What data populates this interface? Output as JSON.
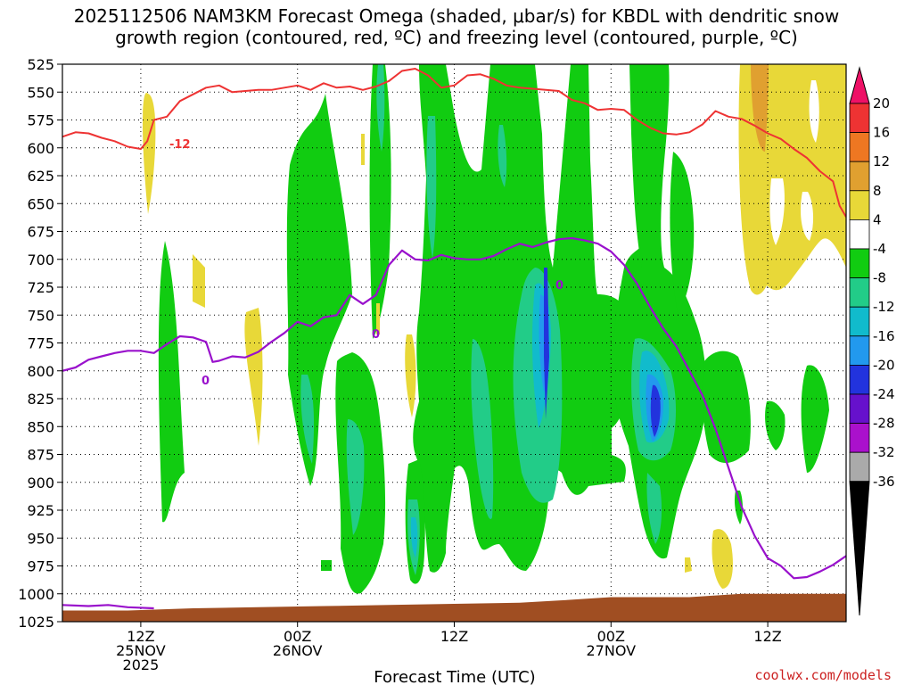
{
  "chart_data": {
    "type": "heatmap",
    "title_line1": "2025112506 NAM3KM Forecast Omega (shaded, μbar/s) for KBDL with dendritic snow",
    "title_line2": "growth region (contoured, red, ºC) and freezing level (contoured, purple, ºC)",
    "xlabel": "Forecast Time (UTC)",
    "credit": "coolwx.com/models",
    "x_range_hours": [
      0,
      60
    ],
    "x_ticks": [
      {
        "hour": 6,
        "lines": [
          "12Z",
          "25NOV",
          "2025"
        ]
      },
      {
        "hour": 18,
        "lines": [
          "00Z",
          "26NOV"
        ]
      },
      {
        "hour": 30,
        "lines": [
          "12Z"
        ]
      },
      {
        "hour": 42,
        "lines": [
          "00Z",
          "27NOV"
        ]
      },
      {
        "hour": 54,
        "lines": [
          "12Z"
        ]
      }
    ],
    "y_range_hpa": [
      1025,
      525
    ],
    "y_ticks": [
      "525",
      "550",
      "575",
      "600",
      "625",
      "650",
      "675",
      "700",
      "725",
      "750",
      "775",
      "800",
      "825",
      "850",
      "875",
      "900",
      "925",
      "950",
      "975",
      "1000",
      "1025"
    ],
    "colorbar": {
      "labels": [
        "20",
        "16",
        "12",
        "8",
        "4",
        "-4",
        "-8",
        "-12",
        "-16",
        "-20",
        "-24",
        "-28",
        "-32",
        "-36"
      ],
      "colors": [
        "#ee1166",
        "#ee3333",
        "#ee7722",
        "#e0a030",
        "#e8d838",
        "#ffffff",
        "#11cc11",
        "#22cc88",
        "#11bbcc",
        "#2299ee",
        "#2233dd",
        "#6611cc",
        "#aa11cc",
        "#aaaaaa",
        "#000000"
      ]
    },
    "series": [
      {
        "name": "omega_shading",
        "colors": {
          "green": "#11cc11",
          "seagreen": "#22cc88",
          "cyan": "#11bbcc",
          "blue": "#2299ee",
          "darkblue": "#2233dd",
          "yellow": "#e8d838",
          "orange": "#e0a030"
        }
      },
      {
        "name": "dgz_-12C",
        "color": "#ee3333",
        "label": "-12",
        "points": [
          [
            0,
            590
          ],
          [
            1,
            586
          ],
          [
            2,
            587
          ],
          [
            3,
            591
          ],
          [
            4,
            594
          ],
          [
            5,
            599
          ],
          [
            6,
            601
          ],
          [
            6.5,
            594
          ],
          [
            7,
            575
          ],
          [
            8,
            572
          ],
          [
            9,
            558
          ],
          [
            10,
            552
          ],
          [
            11,
            546
          ],
          [
            12,
            544
          ],
          [
            13,
            550
          ],
          [
            14,
            549
          ],
          [
            15,
            548
          ],
          [
            16,
            548
          ],
          [
            17,
            546
          ],
          [
            18,
            544
          ],
          [
            19,
            548
          ],
          [
            20,
            542
          ],
          [
            21,
            546
          ],
          [
            22,
            545
          ],
          [
            23,
            548
          ],
          [
            24,
            545
          ],
          [
            25,
            540
          ],
          [
            26,
            531
          ],
          [
            27,
            529
          ],
          [
            28,
            535
          ],
          [
            29,
            546
          ],
          [
            30,
            544
          ],
          [
            31,
            535
          ],
          [
            32,
            534
          ],
          [
            33,
            538
          ],
          [
            34,
            544
          ],
          [
            35,
            546
          ],
          [
            36,
            547
          ],
          [
            37,
            548
          ],
          [
            38,
            549
          ],
          [
            39,
            557
          ],
          [
            40,
            560
          ],
          [
            41,
            566
          ],
          [
            42,
            565
          ],
          [
            43,
            566
          ],
          [
            44,
            575
          ],
          [
            45,
            582
          ],
          [
            46,
            587
          ],
          [
            47,
            588
          ],
          [
            48,
            586
          ],
          [
            49,
            579
          ],
          [
            50,
            567
          ],
          [
            51,
            572
          ],
          [
            52,
            574
          ],
          [
            53,
            580
          ],
          [
            54,
            587
          ],
          [
            55,
            592
          ],
          [
            56,
            601
          ],
          [
            57,
            609
          ],
          [
            58,
            621
          ],
          [
            59,
            630
          ],
          [
            59.5,
            652
          ],
          [
            60,
            662
          ]
        ]
      },
      {
        "name": "freezing_level_0C",
        "color": "#9911cc",
        "label": "0",
        "points": [
          [
            0,
            800
          ],
          [
            1,
            797
          ],
          [
            2,
            790
          ],
          [
            3,
            787
          ],
          [
            4,
            784
          ],
          [
            5,
            782
          ],
          [
            6,
            782
          ],
          [
            7,
            784
          ],
          [
            8,
            776
          ],
          [
            9,
            769
          ],
          [
            10,
            770
          ],
          [
            11,
            774
          ],
          [
            11.5,
            792
          ],
          [
            12,
            791
          ],
          [
            13,
            787
          ],
          [
            14,
            788
          ],
          [
            15,
            783
          ],
          [
            16,
            774
          ],
          [
            17,
            766
          ],
          [
            18,
            756
          ],
          [
            19,
            760
          ],
          [
            20,
            752
          ],
          [
            21,
            750
          ],
          [
            22,
            732
          ],
          [
            23,
            740
          ],
          [
            24,
            732
          ],
          [
            25,
            705
          ],
          [
            26,
            692
          ],
          [
            27,
            700
          ],
          [
            28,
            701
          ],
          [
            29,
            696
          ],
          [
            30,
            699
          ],
          [
            31,
            700
          ],
          [
            32,
            700
          ],
          [
            33,
            697
          ],
          [
            34,
            691
          ],
          [
            35,
            686
          ],
          [
            36,
            689
          ],
          [
            37,
            685
          ],
          [
            38,
            682
          ],
          [
            39,
            681
          ],
          [
            40,
            683
          ],
          [
            41,
            686
          ],
          [
            42,
            693
          ],
          [
            43,
            705
          ],
          [
            44,
            722
          ],
          [
            45,
            743
          ],
          [
            46,
            762
          ],
          [
            47,
            778
          ],
          [
            48,
            800
          ],
          [
            49,
            822
          ],
          [
            50,
            852
          ],
          [
            51,
            887
          ],
          [
            52,
            922
          ],
          [
            53,
            948
          ],
          [
            54,
            968
          ],
          [
            55,
            975
          ],
          [
            56,
            986
          ],
          [
            57,
            985
          ],
          [
            58,
            980
          ],
          [
            59,
            974
          ],
          [
            60,
            966
          ]
        ]
      },
      {
        "name": "surface_1000hPa_0C_segment",
        "color": "#9911cc",
        "points": [
          [
            0,
            1010
          ],
          [
            2,
            1011
          ],
          [
            3.5,
            1010
          ],
          [
            5,
            1012
          ],
          [
            7,
            1013
          ]
        ]
      },
      {
        "name": "terrain",
        "color": "#a04e22"
      }
    ]
  }
}
